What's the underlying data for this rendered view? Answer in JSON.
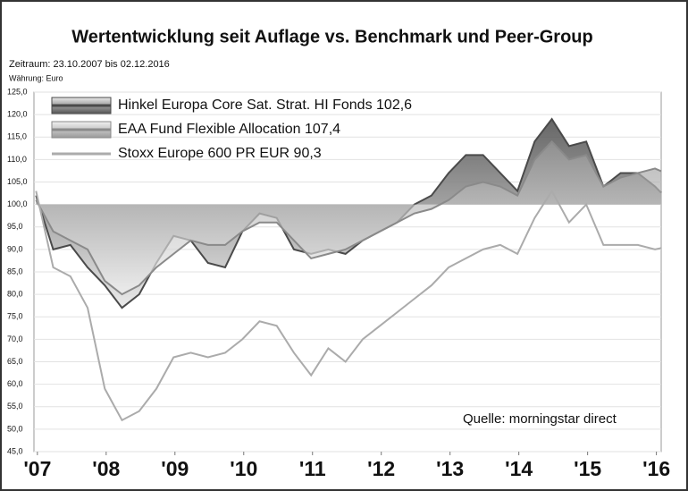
{
  "chart_data": {
    "type": "line",
    "title": "Wertentwicklung seit Auflage vs. Benchmark und Peer-Group",
    "subtitle": "Zeitraum: 23.10.2007 bis 02.12.2016",
    "note": "Währung: Euro",
    "source": "Quelle: morningstar direct",
    "x": [
      2007.83,
      2008.08,
      2008.33,
      2008.58,
      2008.83,
      2009.08,
      2009.33,
      2009.58,
      2009.83,
      2010.08,
      2010.33,
      2010.58,
      2010.83,
      2011.08,
      2011.33,
      2011.58,
      2011.83,
      2012.08,
      2012.33,
      2012.58,
      2012.83,
      2013.08,
      2013.33,
      2013.58,
      2013.83,
      2014.08,
      2014.33,
      2014.58,
      2014.83,
      2015.08,
      2015.33,
      2015.58,
      2015.83,
      2016.08,
      2016.33,
      2016.58,
      2016.83,
      2016.92
    ],
    "series": [
      {
        "name": "Hinkel Europa Core Sat. Strat. HI Fonds 102,6",
        "color": "#4a4a4a",
        "fill": true,
        "values": [
          102,
          90,
          91,
          86,
          82,
          77,
          80,
          87,
          93,
          92,
          87,
          86,
          94,
          98,
          97,
          90,
          89,
          90,
          89,
          92,
          94,
          96,
          100,
          102,
          107,
          111,
          111,
          107,
          103,
          114,
          119,
          113,
          114,
          104,
          107,
          107,
          104,
          102.6
        ]
      },
      {
        "name": "EAA Fund Flexible Allocation 107,4",
        "color": "#8a8a8a",
        "fill": true,
        "values": [
          101,
          94,
          92,
          90,
          83,
          80,
          82,
          86,
          89,
          92,
          91,
          91,
          94,
          96,
          96,
          92,
          88,
          89,
          90,
          92,
          94,
          96,
          98,
          99,
          101,
          104,
          105,
          104,
          102,
          110,
          114,
          110,
          111,
          104,
          106,
          107,
          108,
          107.4
        ]
      },
      {
        "name": "Stoxx Europe 600 PR EUR  90,3",
        "color": "#ababab",
        "fill": false,
        "values": [
          103,
          86,
          84,
          77,
          59,
          52,
          54,
          59,
          66,
          67,
          66,
          67,
          70,
          74,
          73,
          67,
          62,
          68,
          65,
          70,
          73,
          76,
          79,
          82,
          86,
          88,
          90,
          91,
          89,
          97,
          103,
          96,
          100,
          91,
          91,
          91,
          90,
          90.3
        ]
      }
    ],
    "fill_baseline": 100,
    "xlim": [
      2007.8,
      2016.92
    ],
    "xticks": [
      {
        "value": 2007.85,
        "label": "'07"
      },
      {
        "value": 2008.85,
        "label": "'08"
      },
      {
        "value": 2009.85,
        "label": "'09"
      },
      {
        "value": 2010.85,
        "label": "'10"
      },
      {
        "value": 2011.85,
        "label": "'11"
      },
      {
        "value": 2012.85,
        "label": "'12"
      },
      {
        "value": 2013.85,
        "label": "'13"
      },
      {
        "value": 2014.85,
        "label": "'14"
      },
      {
        "value": 2015.85,
        "label": "'15"
      },
      {
        "value": 2016.85,
        "label": "'16"
      }
    ],
    "ylim": [
      45,
      125
    ],
    "yticks": [
      {
        "value": 45,
        "label": "45,0"
      },
      {
        "value": 50,
        "label": "50,0"
      },
      {
        "value": 55,
        "label": "55,0"
      },
      {
        "value": 60,
        "label": "60,0"
      },
      {
        "value": 65,
        "label": "65,0"
      },
      {
        "value": 70,
        "label": "70,0"
      },
      {
        "value": 75,
        "label": "75,0"
      },
      {
        "value": 80,
        "label": "80,0"
      },
      {
        "value": 85,
        "label": "85,0"
      },
      {
        "value": 90,
        "label": "90,0"
      },
      {
        "value": 95,
        "label": "95,0"
      },
      {
        "value": 100,
        "label": "100,0"
      },
      {
        "value": 105,
        "label": "105,0"
      },
      {
        "value": 110,
        "label": "110,0"
      },
      {
        "value": 115,
        "label": "115,0"
      },
      {
        "value": 120,
        "label": "120,0"
      },
      {
        "value": 125,
        "label": "125,0"
      }
    ],
    "grid": true
  }
}
